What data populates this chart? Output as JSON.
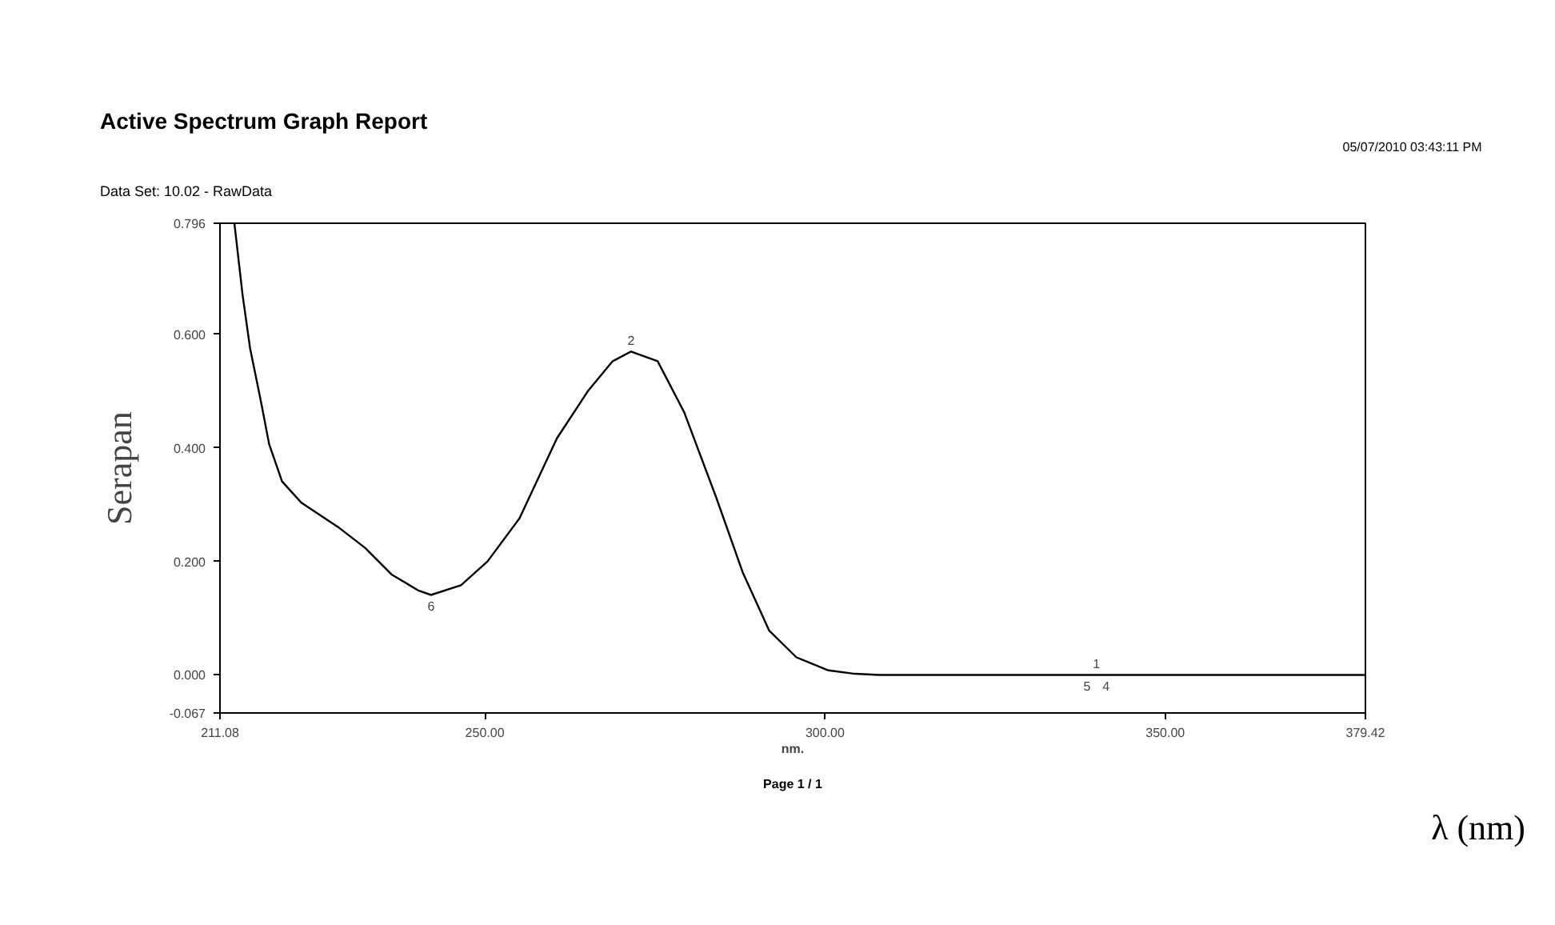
{
  "chart_data": {
    "type": "line",
    "title": "Active Spectrum Graph Report",
    "subtitle": "Data Set:     10.02 - RawData",
    "xlabel": "nm.",
    "ylabel": "Serapan",
    "annotations": [
      "05/07/2010  03:43:11 PM",
      "Page 1 / 1",
      "λ (nm)",
      {
        "text": "2",
        "x": 271.5,
        "y": 0.57
      },
      {
        "text": "6",
        "x": 242.1,
        "y": 0.141
      },
      {
        "text": "1",
        "x": 339.9,
        "y": 0.0
      },
      {
        "text": "5",
        "x": 338.5,
        "y": 0.0
      },
      {
        "text": "4",
        "x": 341.3,
        "y": 0.0
      }
    ],
    "x": [
      213.2,
      214.4,
      215.5,
      217.1,
      218.3,
      220.2,
      223.0,
      228.4,
      232.4,
      236.3,
      240.2,
      242.1,
      246.5,
      250.4,
      255.1,
      260.6,
      265.2,
      268.8,
      271.5,
      275.4,
      279.3,
      284.0,
      287.9,
      291.8,
      295.8,
      300.5,
      304.4,
      308.0,
      340.0,
      379.42
    ],
    "series": [
      {
        "color": "#000000",
        "values": [
          0.796,
          0.67,
          0.576,
          0.482,
          0.407,
          0.341,
          0.304,
          0.261,
          0.224,
          0.177,
          0.149,
          0.141,
          0.158,
          0.2,
          0.276,
          0.417,
          0.501,
          0.553,
          0.57,
          0.553,
          0.463,
          0.313,
          0.181,
          0.078,
          0.031,
          0.008,
          0.002,
          0.0,
          0.0,
          0.0
        ]
      }
    ],
    "xlim": [
      211.08,
      379.42
    ],
    "ylim": [
      -0.067,
      0.796
    ],
    "xticks": [
      {
        "value": 211.08,
        "label": "211.08"
      },
      {
        "value": 250,
        "label": "250.00"
      },
      {
        "value": 300,
        "label": "300.00"
      },
      {
        "value": 350,
        "label": "350.00"
      },
      {
        "value": 379.42,
        "label": "379.42"
      }
    ],
    "yticks": [
      {
        "value": -0.067,
        "label": "-0.067"
      },
      {
        "value": 0,
        "label": "0.000"
      },
      {
        "value": 0.2,
        "label": "0.200"
      },
      {
        "value": 0.4,
        "label": "0.400"
      },
      {
        "value": 0.6,
        "label": "0.600"
      },
      {
        "value": 0.796,
        "label": "0.796"
      }
    ],
    "grid": false,
    "marker": "none",
    "line_style": "solid"
  }
}
